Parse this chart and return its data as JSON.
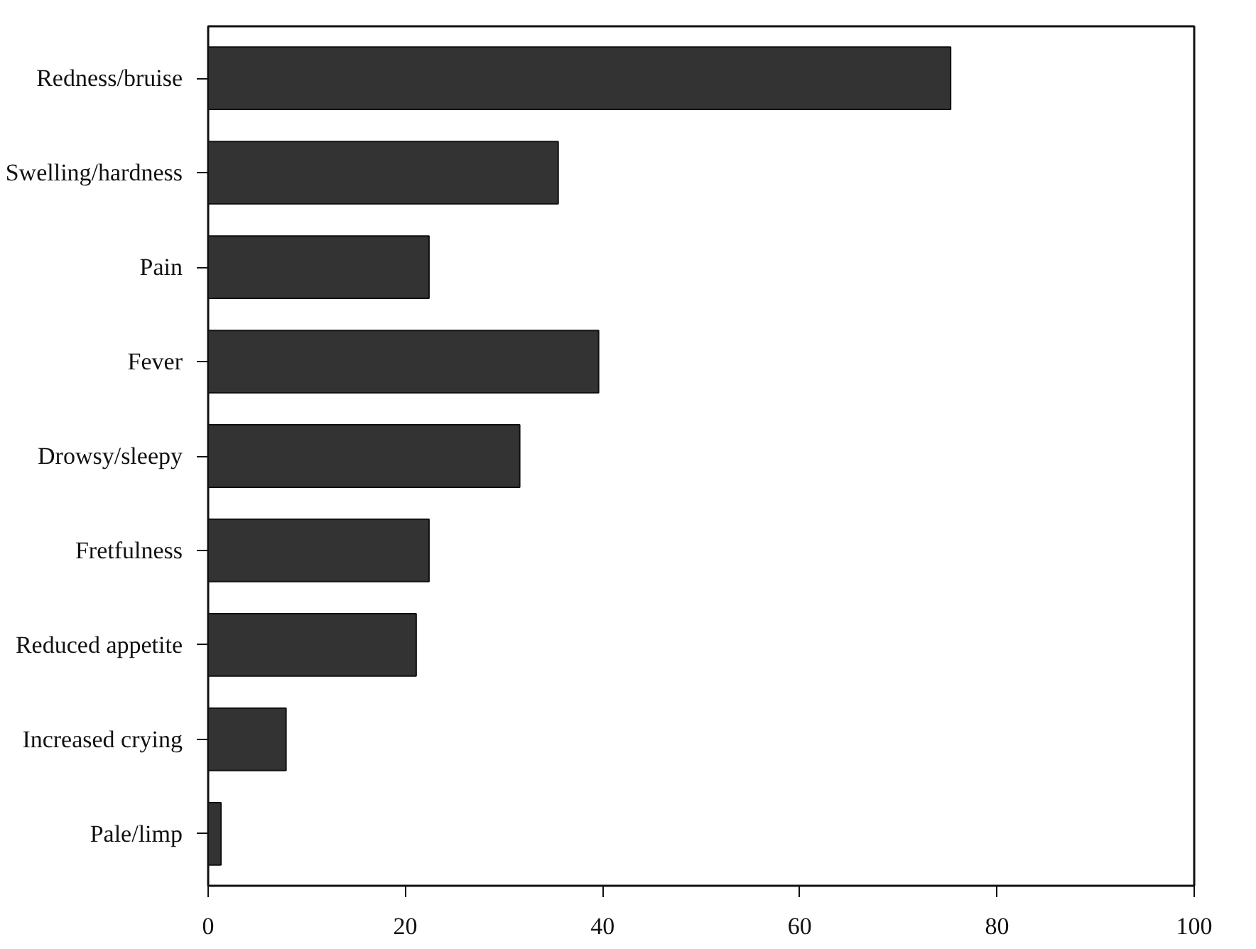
{
  "chart_data": {
    "type": "bar",
    "orientation": "horizontal",
    "categories": [
      "Redness/bruise",
      "Swelling/hardness",
      "Pain",
      "Fever",
      "Drowsy/sleepy",
      "Fretfulness",
      "Reduced appetite",
      "Increased crying",
      "Pale/limp"
    ],
    "values": [
      75.3,
      35.5,
      22.4,
      39.6,
      31.6,
      22.4,
      21.1,
      7.9,
      1.3
    ],
    "color": "#333333",
    "xlim": [
      0,
      100
    ],
    "xticks": [
      0,
      20,
      40,
      60,
      80,
      100
    ],
    "grid": false
  }
}
